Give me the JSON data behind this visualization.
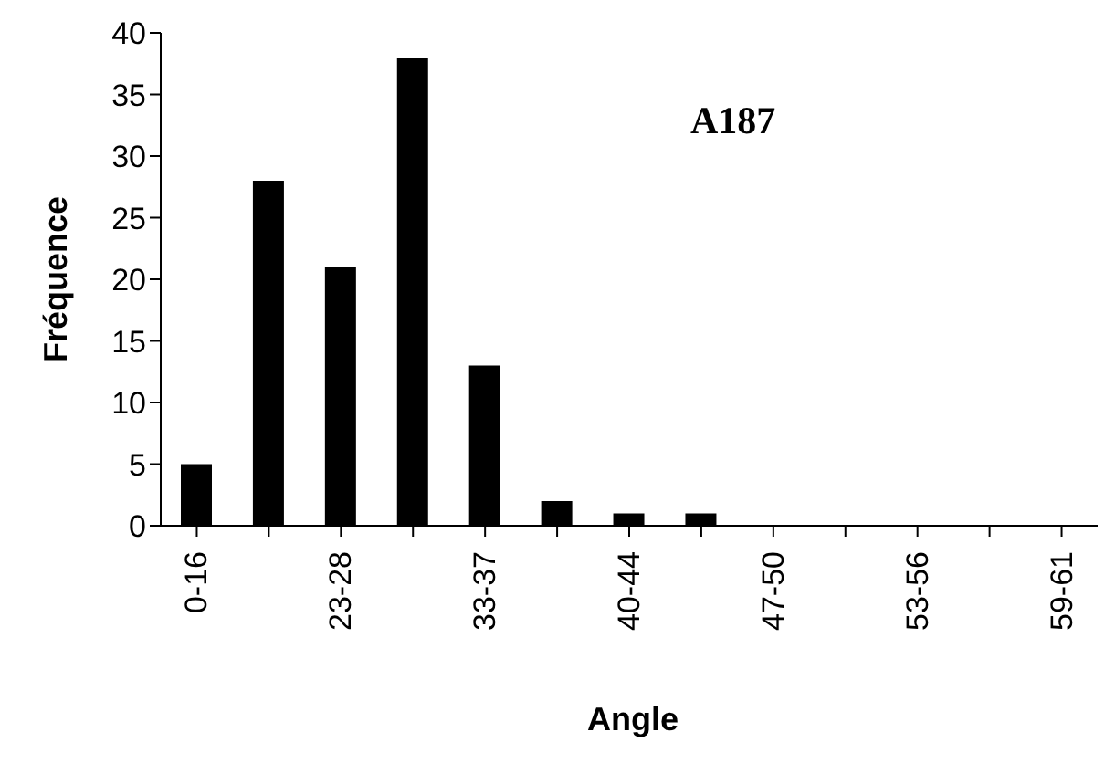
{
  "chart_data": {
    "type": "bar",
    "title": "A187",
    "xlabel": "Angle",
    "ylabel": "Fréquence",
    "categories": [
      "0-16",
      null,
      "23-28",
      null,
      "33-37",
      null,
      "40-44",
      null,
      "47-50",
      null,
      "53-56",
      null,
      "59-61"
    ],
    "values": [
      5,
      28,
      21,
      38,
      13,
      2,
      1,
      1,
      0,
      0,
      0,
      0,
      0
    ],
    "color": "#000000",
    "ylim": [
      0,
      40
    ],
    "yticks": [
      0,
      5,
      10,
      15,
      20,
      25,
      30,
      35,
      40
    ],
    "grid": false,
    "legend": false
  }
}
